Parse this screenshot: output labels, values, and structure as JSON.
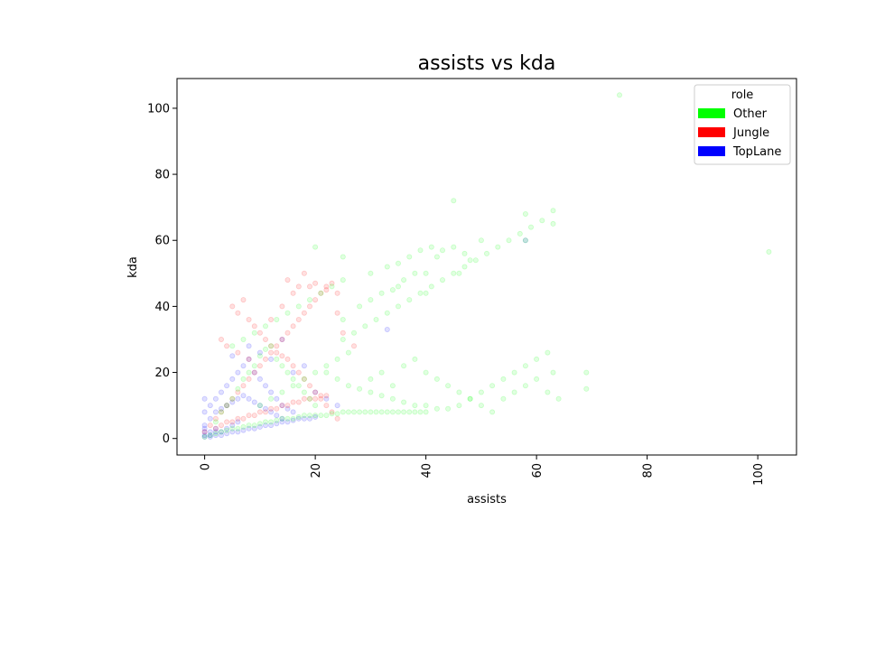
{
  "chart_data": {
    "type": "scatter",
    "title": "assists vs kda",
    "xlabel": "assists",
    "ylabel": "kda",
    "xlim": [
      -5,
      107
    ],
    "ylim": [
      -5,
      109
    ],
    "xticks": [
      0,
      20,
      40,
      60,
      80,
      100
    ],
    "xtick_labels": [
      "0",
      "20",
      "40",
      "60",
      "80",
      "100"
    ],
    "yticks": [
      0,
      20,
      40,
      60,
      80,
      100
    ],
    "ytick_labels": [
      "0",
      "20",
      "40",
      "60",
      "80",
      "100"
    ],
    "xtick_rotation": "vertical",
    "grid": false,
    "legend": {
      "title": "role",
      "placement": "top-right",
      "entries": [
        "Other",
        "Jungle",
        "TopLane"
      ]
    },
    "series": [
      {
        "name": "Other",
        "color": "#00ff00",
        "points": [
          [
            0,
            0.5
          ],
          [
            1,
            1
          ],
          [
            2,
            1.5
          ],
          [
            3,
            2
          ],
          [
            4,
            2.5
          ],
          [
            5,
            3
          ],
          [
            6,
            3
          ],
          [
            7,
            3.5
          ],
          [
            8,
            4
          ],
          [
            9,
            4
          ],
          [
            10,
            4.5
          ],
          [
            11,
            5
          ],
          [
            12,
            5
          ],
          [
            13,
            5.5
          ],
          [
            14,
            6
          ],
          [
            15,
            6
          ],
          [
            16,
            6
          ],
          [
            17,
            6.5
          ],
          [
            18,
            7
          ],
          [
            19,
            7
          ],
          [
            20,
            7
          ],
          [
            21,
            7
          ],
          [
            22,
            7
          ],
          [
            23,
            7.5
          ],
          [
            24,
            7.5
          ],
          [
            25,
            8
          ],
          [
            26,
            8
          ],
          [
            27,
            8
          ],
          [
            28,
            8
          ],
          [
            29,
            8
          ],
          [
            30,
            8
          ],
          [
            31,
            8
          ],
          [
            32,
            8
          ],
          [
            33,
            8
          ],
          [
            34,
            8
          ],
          [
            35,
            8
          ],
          [
            36,
            8
          ],
          [
            37,
            8
          ],
          [
            38,
            8
          ],
          [
            39,
            8
          ],
          [
            40,
            8
          ],
          [
            2,
            5
          ],
          [
            3,
            8
          ],
          [
            4,
            10
          ],
          [
            5,
            12
          ],
          [
            6,
            15
          ],
          [
            7,
            18
          ],
          [
            8,
            20
          ],
          [
            9,
            22
          ],
          [
            10,
            25
          ],
          [
            11,
            27
          ],
          [
            12,
            28
          ],
          [
            13,
            24
          ],
          [
            14,
            22
          ],
          [
            15,
            20
          ],
          [
            16,
            18
          ],
          [
            17,
            16
          ],
          [
            18,
            14
          ],
          [
            19,
            12
          ],
          [
            20,
            10
          ],
          [
            22,
            20
          ],
          [
            24,
            18
          ],
          [
            26,
            16
          ],
          [
            28,
            15
          ],
          [
            30,
            14
          ],
          [
            32,
            13
          ],
          [
            34,
            12
          ],
          [
            36,
            11
          ],
          [
            38,
            10
          ],
          [
            40,
            10
          ],
          [
            42,
            9
          ],
          [
            44,
            9
          ],
          [
            46,
            10
          ],
          [
            48,
            12
          ],
          [
            50,
            14
          ],
          [
            52,
            16
          ],
          [
            54,
            18
          ],
          [
            56,
            20
          ],
          [
            58,
            22
          ],
          [
            60,
            24
          ],
          [
            62,
            26
          ],
          [
            63,
            20
          ],
          [
            25,
            30
          ],
          [
            27,
            32
          ],
          [
            29,
            34
          ],
          [
            31,
            36
          ],
          [
            33,
            38
          ],
          [
            35,
            40
          ],
          [
            37,
            42
          ],
          [
            39,
            44
          ],
          [
            41,
            46
          ],
          [
            43,
            48
          ],
          [
            45,
            50
          ],
          [
            47,
            52
          ],
          [
            49,
            54
          ],
          [
            51,
            56
          ],
          [
            53,
            58
          ],
          [
            55,
            60
          ],
          [
            57,
            62
          ],
          [
            59,
            64
          ],
          [
            61,
            66
          ],
          [
            63,
            69
          ],
          [
            25,
            36
          ],
          [
            28,
            40
          ],
          [
            30,
            42
          ],
          [
            32,
            44
          ],
          [
            34,
            45
          ],
          [
            36,
            48
          ],
          [
            38,
            50
          ],
          [
            40,
            50
          ],
          [
            42,
            55
          ],
          [
            45,
            58
          ],
          [
            47,
            56
          ],
          [
            50,
            60
          ],
          [
            58,
            60
          ],
          [
            45,
            72
          ],
          [
            58,
            68
          ],
          [
            63,
            65
          ],
          [
            69,
            20
          ],
          [
            69,
            15
          ],
          [
            75,
            104
          ],
          [
            102,
            56.5
          ],
          [
            30,
            18
          ],
          [
            32,
            20
          ],
          [
            34,
            16
          ],
          [
            36,
            22
          ],
          [
            38,
            24
          ],
          [
            40,
            20
          ],
          [
            42,
            18
          ],
          [
            44,
            16
          ],
          [
            46,
            14
          ],
          [
            48,
            12
          ],
          [
            50,
            10
          ],
          [
            52,
            8
          ],
          [
            54,
            12
          ],
          [
            56,
            14
          ],
          [
            58,
            16
          ],
          [
            60,
            18
          ],
          [
            62,
            14
          ],
          [
            64,
            12
          ],
          [
            5,
            28
          ],
          [
            7,
            30
          ],
          [
            9,
            32
          ],
          [
            11,
            34
          ],
          [
            13,
            36
          ],
          [
            15,
            38
          ],
          [
            17,
            40
          ],
          [
            19,
            42
          ],
          [
            21,
            44
          ],
          [
            23,
            46
          ],
          [
            25,
            48
          ],
          [
            10,
            10
          ],
          [
            12,
            12
          ],
          [
            14,
            14
          ],
          [
            16,
            16
          ],
          [
            18,
            18
          ],
          [
            20,
            20
          ],
          [
            22,
            22
          ],
          [
            24,
            24
          ],
          [
            26,
            26
          ],
          [
            33,
            52
          ],
          [
            35,
            53
          ],
          [
            37,
            55
          ],
          [
            39,
            57
          ],
          [
            41,
            58
          ],
          [
            43,
            57
          ],
          [
            46,
            50
          ],
          [
            48,
            54
          ],
          [
            20,
            58
          ],
          [
            25,
            55
          ],
          [
            30,
            50
          ],
          [
            35,
            46
          ],
          [
            40,
            44
          ]
        ]
      },
      {
        "name": "Jungle",
        "color": "#ff0000",
        "points": [
          [
            0,
            2
          ],
          [
            1,
            4
          ],
          [
            2,
            6
          ],
          [
            3,
            8
          ],
          [
            4,
            10
          ],
          [
            5,
            12
          ],
          [
            6,
            14
          ],
          [
            7,
            16
          ],
          [
            8,
            18
          ],
          [
            9,
            20
          ],
          [
            10,
            22
          ],
          [
            11,
            24
          ],
          [
            12,
            26
          ],
          [
            13,
            28
          ],
          [
            14,
            30
          ],
          [
            15,
            32
          ],
          [
            16,
            34
          ],
          [
            17,
            36
          ],
          [
            18,
            38
          ],
          [
            19,
            40
          ],
          [
            20,
            42
          ],
          [
            21,
            44
          ],
          [
            22,
            46
          ],
          [
            23,
            47
          ],
          [
            24,
            44
          ],
          [
            5,
            40
          ],
          [
            6,
            38
          ],
          [
            7,
            42
          ],
          [
            8,
            36
          ],
          [
            9,
            34
          ],
          [
            10,
            32
          ],
          [
            11,
            30
          ],
          [
            12,
            28
          ],
          [
            13,
            26
          ],
          [
            14,
            25
          ],
          [
            15,
            24
          ],
          [
            16,
            22
          ],
          [
            17,
            20
          ],
          [
            18,
            18
          ],
          [
            19,
            16
          ],
          [
            20,
            14
          ],
          [
            21,
            12
          ],
          [
            22,
            10
          ],
          [
            23,
            8
          ],
          [
            24,
            6
          ],
          [
            15,
            48
          ],
          [
            18,
            50
          ],
          [
            20,
            47
          ],
          [
            22,
            45
          ],
          [
            24,
            38
          ],
          [
            25,
            32
          ],
          [
            27,
            28
          ],
          [
            3,
            30
          ],
          [
            4,
            28
          ],
          [
            6,
            26
          ],
          [
            8,
            24
          ],
          [
            12,
            36
          ],
          [
            14,
            40
          ],
          [
            16,
            44
          ],
          [
            17,
            46
          ],
          [
            19,
            46
          ],
          [
            2,
            3
          ],
          [
            3,
            4
          ],
          [
            4,
            5
          ],
          [
            5,
            5
          ],
          [
            6,
            6
          ],
          [
            7,
            6
          ],
          [
            8,
            7
          ],
          [
            9,
            7
          ],
          [
            10,
            8
          ],
          [
            11,
            8
          ],
          [
            12,
            9
          ],
          [
            13,
            9
          ],
          [
            14,
            10
          ],
          [
            15,
            10
          ],
          [
            16,
            11
          ],
          [
            17,
            11
          ],
          [
            18,
            12
          ],
          [
            19,
            12
          ],
          [
            20,
            12
          ],
          [
            21,
            13
          ],
          [
            22,
            13
          ]
        ]
      },
      {
        "name": "TopLane",
        "color": "#0000ff",
        "points": [
          [
            0,
            0.5
          ],
          [
            0,
            1
          ],
          [
            0,
            2
          ],
          [
            0,
            3
          ],
          [
            0,
            4
          ],
          [
            1,
            0.5
          ],
          [
            1,
            1
          ],
          [
            1,
            2
          ],
          [
            2,
            1
          ],
          [
            2,
            2
          ],
          [
            2,
            3
          ],
          [
            3,
            1
          ],
          [
            3,
            2
          ],
          [
            4,
            1.5
          ],
          [
            4,
            3
          ],
          [
            5,
            2
          ],
          [
            5,
            4
          ],
          [
            6,
            2
          ],
          [
            6,
            5
          ],
          [
            7,
            2.5
          ],
          [
            8,
            3
          ],
          [
            9,
            3
          ],
          [
            10,
            3.5
          ],
          [
            11,
            4
          ],
          [
            12,
            4
          ],
          [
            13,
            4.5
          ],
          [
            14,
            5
          ],
          [
            15,
            5
          ],
          [
            16,
            5.5
          ],
          [
            17,
            6
          ],
          [
            18,
            6
          ],
          [
            19,
            6
          ],
          [
            20,
            6.5
          ],
          [
            1,
            10
          ],
          [
            2,
            12
          ],
          [
            3,
            14
          ],
          [
            4,
            16
          ],
          [
            5,
            18
          ],
          [
            6,
            20
          ],
          [
            7,
            22
          ],
          [
            8,
            24
          ],
          [
            9,
            20
          ],
          [
            10,
            18
          ],
          [
            11,
            16
          ],
          [
            12,
            14
          ],
          [
            13,
            12
          ],
          [
            14,
            10
          ],
          [
            15,
            9
          ],
          [
            16,
            8
          ],
          [
            0,
            8
          ],
          [
            0,
            12
          ],
          [
            1,
            6
          ],
          [
            2,
            8
          ],
          [
            3,
            9
          ],
          [
            4,
            10
          ],
          [
            5,
            11
          ],
          [
            6,
            12
          ],
          [
            7,
            13
          ],
          [
            8,
            12
          ],
          [
            9,
            11
          ],
          [
            10,
            10
          ],
          [
            11,
            9
          ],
          [
            12,
            8
          ],
          [
            13,
            7
          ],
          [
            14,
            6
          ],
          [
            5,
            25
          ],
          [
            8,
            28
          ],
          [
            10,
            26
          ],
          [
            12,
            24
          ],
          [
            14,
            30
          ],
          [
            16,
            20
          ],
          [
            18,
            22
          ],
          [
            20,
            14
          ],
          [
            22,
            12
          ],
          [
            24,
            10
          ],
          [
            58,
            60
          ],
          [
            33,
            33
          ]
        ]
      }
    ]
  }
}
